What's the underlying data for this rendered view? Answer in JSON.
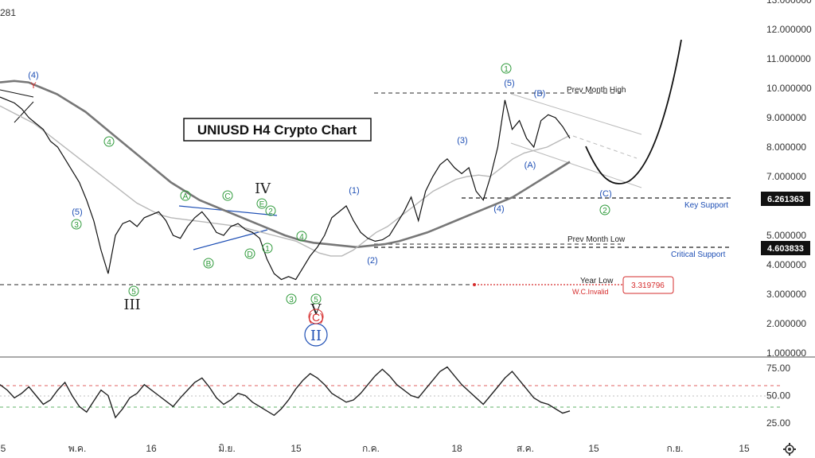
{
  "header": {
    "symbol_fragment": "281"
  },
  "chart_data": {
    "type": "line",
    "title": "UNIUSD H4 Crypto Chart",
    "ylim": [
      1.0,
      13.0
    ],
    "price_ticks": [
      "13.000000",
      "12.000000",
      "11.000000",
      "10.000000",
      "9.000000",
      "8.000000",
      "7.000000",
      "5.000000",
      "4.000000",
      "3.000000",
      "2.000000",
      "1.000000"
    ],
    "x_ticks": [
      "5",
      "พ.ค.",
      "16",
      "มิ.ย.",
      "15",
      "ก.ค.",
      "18",
      "ส.ค.",
      "15",
      "ก.ย.",
      "15"
    ],
    "price_series": [
      9.7,
      9.6,
      9.5,
      9.3,
      9.0,
      8.8,
      8.6,
      8.2,
      8.0,
      7.6,
      7.2,
      6.8,
      6.2,
      5.5,
      4.5,
      3.7,
      5.0,
      5.4,
      5.5,
      5.3,
      5.6,
      5.7,
      5.8,
      5.5,
      5.0,
      4.9,
      5.3,
      5.6,
      5.8,
      5.5,
      5.1,
      5.0,
      5.3,
      5.4,
      5.2,
      5.1,
      4.9,
      4.2,
      3.7,
      3.5,
      3.6,
      3.5,
      3.9,
      4.3,
      4.6,
      5.0,
      5.6,
      5.8,
      6.0,
      5.5,
      5.1,
      4.9,
      4.8,
      4.85,
      5.0,
      5.4,
      5.8,
      6.3,
      5.5,
      6.5,
      7.0,
      7.4,
      7.6,
      7.3,
      7.1,
      7.3,
      6.5,
      6.2,
      7.0,
      8.0,
      9.6,
      8.6,
      8.9,
      8.3,
      8.0,
      8.9,
      9.1,
      9.0,
      8.7,
      8.3
    ],
    "ma_fast": [
      9.4,
      9.2,
      9.0,
      8.8,
      8.5,
      8.2,
      7.9,
      7.6,
      7.3,
      7.0,
      6.7,
      6.4,
      6.1,
      5.9,
      5.7,
      5.6,
      5.55,
      5.5,
      5.45,
      5.4,
      5.35,
      5.3,
      5.2,
      5.1,
      5.0,
      4.9,
      4.8,
      4.6,
      4.4,
      4.3,
      4.3,
      4.5,
      4.8,
      5.1,
      5.3,
      5.6,
      5.9,
      6.2,
      6.5,
      6.7,
      6.9,
      7.0,
      7.05,
      7.0,
      7.3,
      7.6,
      7.8,
      7.9,
      8.0,
      8.2,
      8.4
    ],
    "ma_slow": [
      10.2,
      10.25,
      10.2,
      10.0,
      9.8,
      9.5,
      9.2,
      8.8,
      8.4,
      8.0,
      7.6,
      7.2,
      6.8,
      6.5,
      6.2,
      6.0,
      5.8,
      5.6,
      5.4,
      5.2,
      5.0,
      4.85,
      4.75,
      4.7,
      4.65,
      4.6,
      4.65,
      4.7,
      4.8,
      4.95,
      5.1,
      5.3,
      5.5,
      5.7,
      5.9,
      6.1,
      6.3,
      6.6,
      6.9,
      7.2,
      7.5
    ],
    "rsi_axis_ticks": [
      "75.00",
      "50.00",
      "25.00"
    ],
    "rsi_levels": {
      "upper": 60,
      "lower": 40
    },
    "rsi_series": [
      60,
      55,
      48,
      52,
      58,
      50,
      42,
      46,
      55,
      62,
      50,
      40,
      35,
      45,
      55,
      50,
      30,
      38,
      48,
      52,
      60,
      55,
      50,
      45,
      40,
      48,
      55,
      62,
      66,
      58,
      48,
      42,
      46,
      52,
      50,
      44,
      40,
      36,
      32,
      38,
      46,
      56,
      64,
      70,
      66,
      60,
      52,
      48,
      44,
      46,
      52,
      60,
      68,
      74,
      68,
      60,
      55,
      50,
      48,
      56,
      64,
      72,
      76,
      68,
      60,
      54,
      48,
      42,
      50,
      58,
      66,
      72,
      64,
      56,
      48,
      44,
      42,
      38,
      34,
      36
    ],
    "labels": {
      "prev_month_high": "Prev Month High",
      "prev_month_low": "Prev Month Low",
      "year_low": "Year Low",
      "wc_invalid": "W.C.Invalid",
      "key_support": "Key Support",
      "critical_support": "Critical Support",
      "key_support_value": "6.261363",
      "critical_support_value": "4.603833",
      "year_low_value": "3.319796"
    },
    "wave_labels_blue": [
      "(4)",
      "(5)",
      "(1)",
      "(2)",
      "(3)",
      "(4)",
      "(5)",
      "(B)",
      "(A)",
      "(C)"
    ],
    "wave_labels_green": [
      "3",
      "4",
      "A",
      "B",
      "C",
      "D",
      "E",
      "2",
      "1",
      "4",
      "3",
      "5",
      "5",
      "1",
      "2"
    ],
    "wave_labels_roman": [
      "III",
      "IV",
      "V",
      "II"
    ],
    "wave_label_red_y": "Y",
    "wave_label_red_c": "(C)"
  },
  "footer": {
    "settings_icon": "gear-icon"
  },
  "colors": {
    "price": "#111111",
    "ma_slow": "#777777",
    "ma_fast": "#b8b8b8",
    "wave_blue": "#1e4fb5",
    "wave_green": "#2e9a3a",
    "red": "#d62d2d",
    "rsi": "#222222"
  }
}
